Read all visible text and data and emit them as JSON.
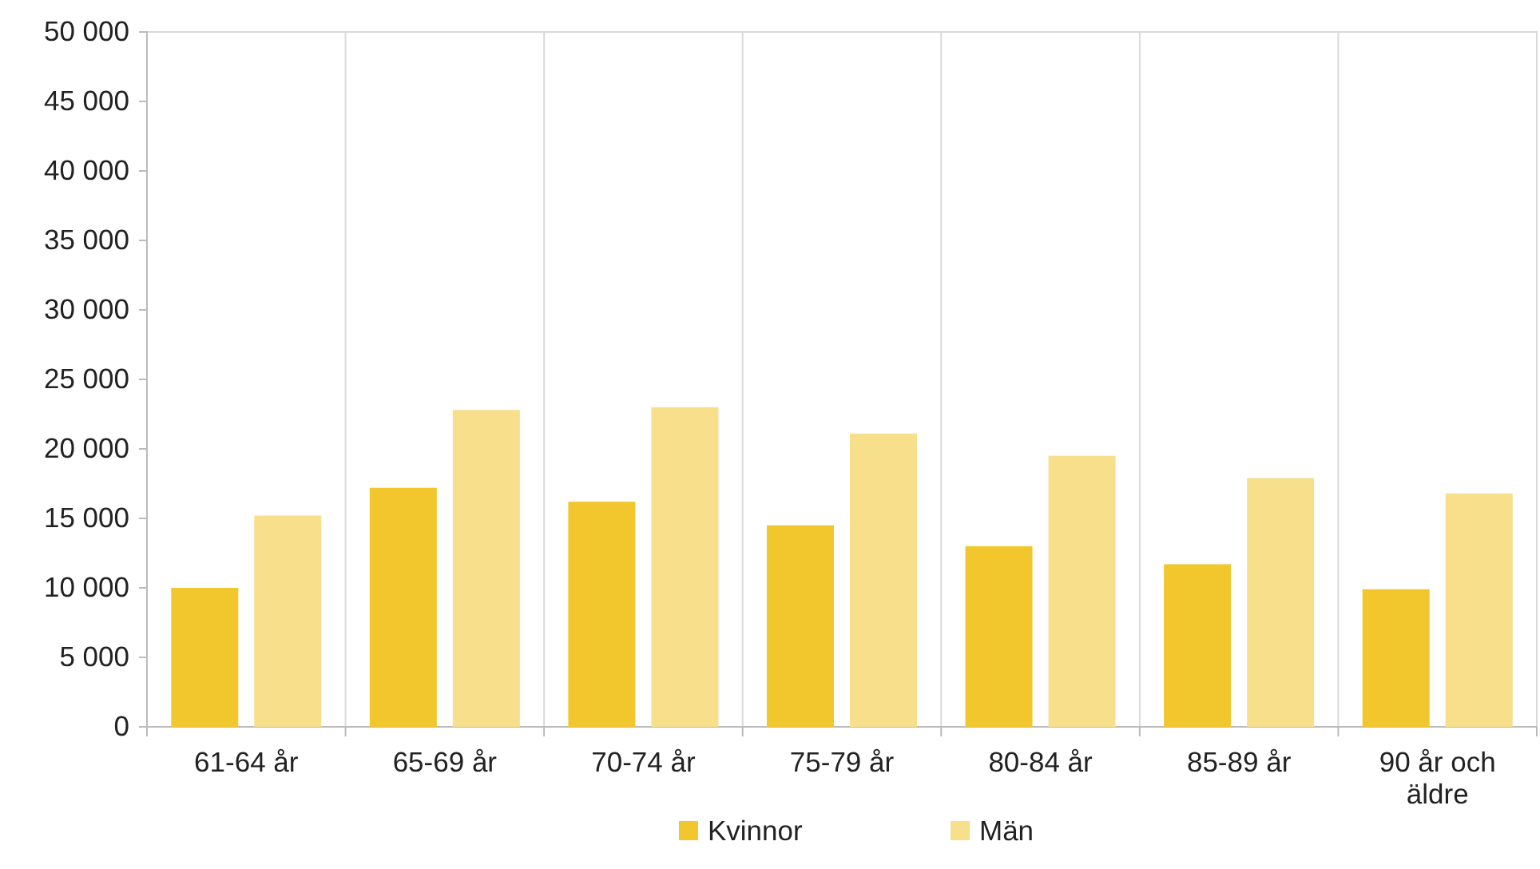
{
  "chart_data": {
    "type": "bar",
    "categories": [
      "61-64 år",
      "65-69 år",
      "70-74 år",
      "75-79 år",
      "80-84 år",
      "85-89 år",
      "90 år och äldre"
    ],
    "series": [
      {
        "name": "Kvinnor",
        "color": "#f2c72e",
        "values": [
          10000,
          17200,
          16200,
          14500,
          13000,
          11700,
          9900
        ]
      },
      {
        "name": "Män",
        "color": "#f7df8b",
        "values": [
          15200,
          22800,
          23000,
          21100,
          19500,
          17900,
          16800
        ]
      }
    ],
    "ylim": [
      0,
      50000
    ],
    "yticks": [
      0,
      {
        "value": 5000,
        "label": "5 000"
      },
      {
        "value": 10000,
        "label": "10 000"
      },
      {
        "value": 15000,
        "label": "15 000"
      },
      {
        "value": 20000,
        "label": "20 000"
      },
      {
        "value": 25000,
        "label": "25 000"
      },
      {
        "value": 30000,
        "label": "30 000"
      },
      {
        "value": 35000,
        "label": "35 000"
      },
      {
        "value": 40000,
        "label": "40 000"
      },
      {
        "value": 45000,
        "label": "45 000"
      },
      {
        "value": 50000,
        "label": "50 000"
      }
    ],
    "grid": "x",
    "legend": "bottom"
  }
}
